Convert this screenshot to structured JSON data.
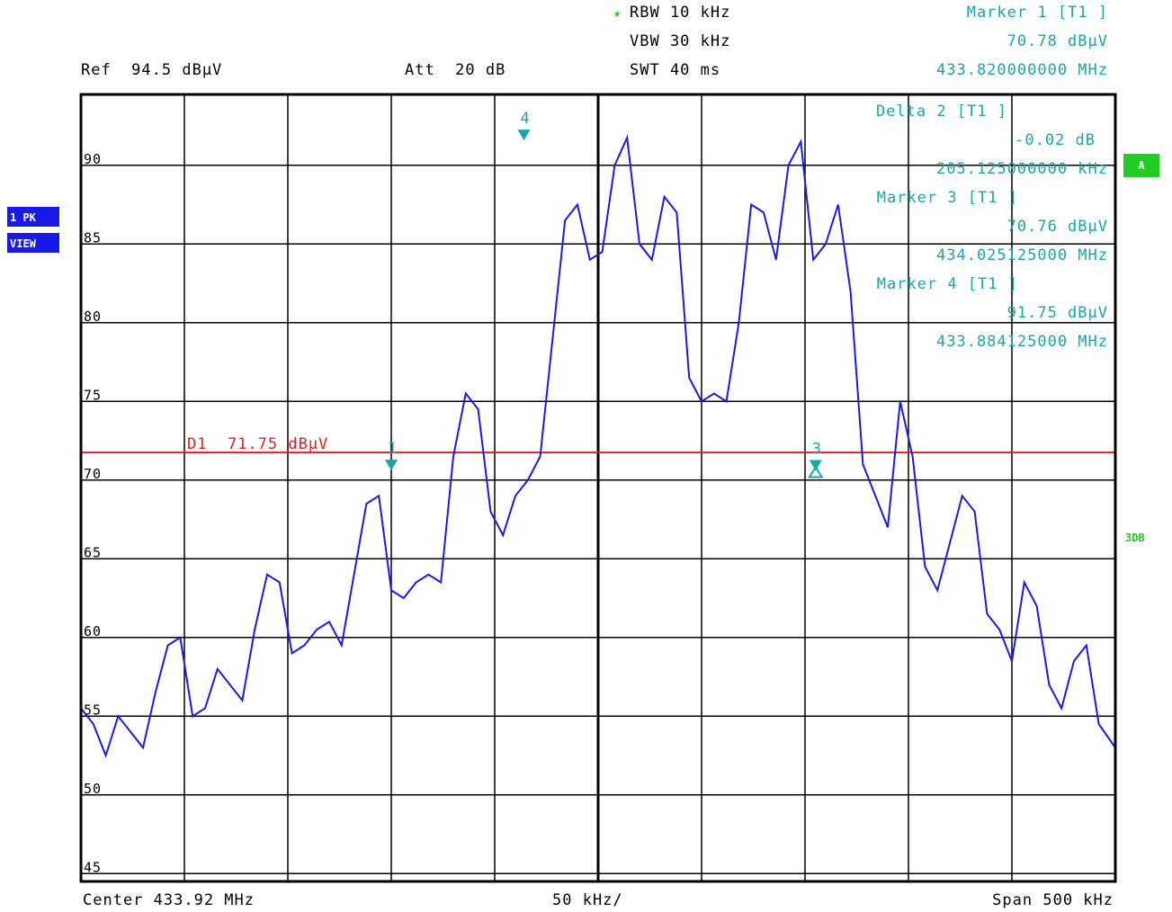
{
  "header": {
    "rbw": "RBW 10 kHz",
    "vbw": "VBW 30 kHz",
    "swt": "SWT 40 ms",
    "ref": "Ref  94.5 dBµV",
    "att": "Att  20 dB"
  },
  "marker_info": {
    "m1_title": "Marker 1 [T1 ]",
    "m1_level": "70.78 dBµV",
    "m1_freq": "433.820000000 MHz",
    "d2_title": "Delta 2 [T1 ]",
    "d2_level": "-0.02 dB",
    "d2_freq": "205.125000000 kHz",
    "m3_title": "Marker 3 [T1 ]",
    "m3_level": "70.76 dBµV",
    "m3_freq": "434.025125000 MHz",
    "m4_title": "Marker 4 [T1 ]",
    "m4_level": "91.75 dBµV",
    "m4_freq": "433.884125000 MHz"
  },
  "footer": {
    "center": "Center 433.92 MHz",
    "div": "50 kHz/",
    "span": "Span 500 kHz"
  },
  "badges": {
    "trace": "1 PK",
    "view": "VIEW",
    "a": "A",
    "three_db": "3DB"
  },
  "colors": {
    "trace": "#1a1ae6",
    "display_line": "#e02020",
    "marker": "#1aa6a6",
    "badge_green": "#22cc22",
    "badge_blue": "#1a1ae6"
  },
  "chart_data": {
    "type": "line",
    "xlabel": "",
    "ylabel": "",
    "x_unit": "MHz",
    "y_unit": "dBµV",
    "xlim": [
      433.67,
      434.17
    ],
    "ylim": [
      44.5,
      94.5
    ],
    "yticks": [
      90,
      85,
      80,
      75,
      70,
      65,
      60,
      55,
      50,
      45
    ],
    "ytick_labels": [
      "90",
      "85",
      "80",
      "75",
      "70",
      "65",
      "60",
      "55",
      "50",
      "45"
    ],
    "grid": true,
    "display_line": {
      "label": "D1  71.75 dBµV",
      "value": 71.75
    },
    "markers": [
      {
        "id": "1",
        "label": "1",
        "x": 433.82,
        "y": 70.78
      },
      {
        "id": "3",
        "label": "3",
        "x": 434.025125,
        "y": 70.76
      },
      {
        "id": "4",
        "label": "4",
        "x": 433.884125,
        "y": 91.75
      }
    ],
    "delta_markers": [
      {
        "id": "2",
        "label": "2",
        "x": 434.025125,
        "y": 70.76
      }
    ],
    "series": [
      {
        "x": [
          433.67,
          433.676,
          433.682,
          433.688,
          433.694,
          433.7,
          433.706,
          433.712,
          433.718,
          433.724,
          433.73,
          433.736,
          433.742,
          433.748,
          433.754,
          433.76,
          433.766,
          433.772,
          433.778,
          433.784,
          433.79,
          433.796,
          433.802,
          433.808,
          433.814,
          433.82,
          433.826,
          433.832,
          433.838,
          433.844,
          433.85,
          433.856,
          433.862,
          433.868,
          433.874,
          433.88,
          433.886,
          433.892,
          433.898,
          433.904,
          433.91,
          433.916,
          433.922,
          433.928,
          433.934,
          433.94,
          433.946,
          433.952,
          433.958,
          433.964,
          433.97,
          433.976,
          433.982,
          433.988,
          433.994,
          434.0,
          434.006,
          434.012,
          434.018,
          434.024,
          434.03,
          434.036,
          434.042,
          434.048,
          434.054,
          434.06,
          434.066,
          434.072,
          434.078,
          434.084,
          434.09,
          434.096,
          434.102,
          434.108,
          434.114,
          434.12,
          434.126,
          434.132,
          434.138,
          434.144,
          434.15,
          434.156,
          434.162,
          434.17
        ],
        "values": [
          55.5,
          54.5,
          52.5,
          55.0,
          54.0,
          53.0,
          56.5,
          59.5,
          60.0,
          55.0,
          55.5,
          58.0,
          57.0,
          56.0,
          60.5,
          64.0,
          63.5,
          59.0,
          59.5,
          60.5,
          61.0,
          59.5,
          64.0,
          68.5,
          69.0,
          63.0,
          62.5,
          63.5,
          64.0,
          63.5,
          71.5,
          75.5,
          74.5,
          68.0,
          66.5,
          69.0,
          70.0,
          71.5,
          79.0,
          86.5,
          87.5,
          84.0,
          84.5,
          90.0,
          91.75,
          85.0,
          84.0,
          88.0,
          87.0,
          76.5,
          75.0,
          75.5,
          75.0,
          80.0,
          87.5,
          87.0,
          84.0,
          90.0,
          91.5,
          84.0,
          85.0,
          87.5,
          82.0,
          71.0,
          69.0,
          67.0,
          75.0,
          71.5,
          64.5,
          63.0,
          66.0,
          69.0,
          68.0,
          61.5,
          60.5,
          58.5,
          63.5,
          62.0,
          57.0,
          55.5,
          58.5,
          59.5,
          54.5,
          53.0
        ]
      }
    ]
  }
}
